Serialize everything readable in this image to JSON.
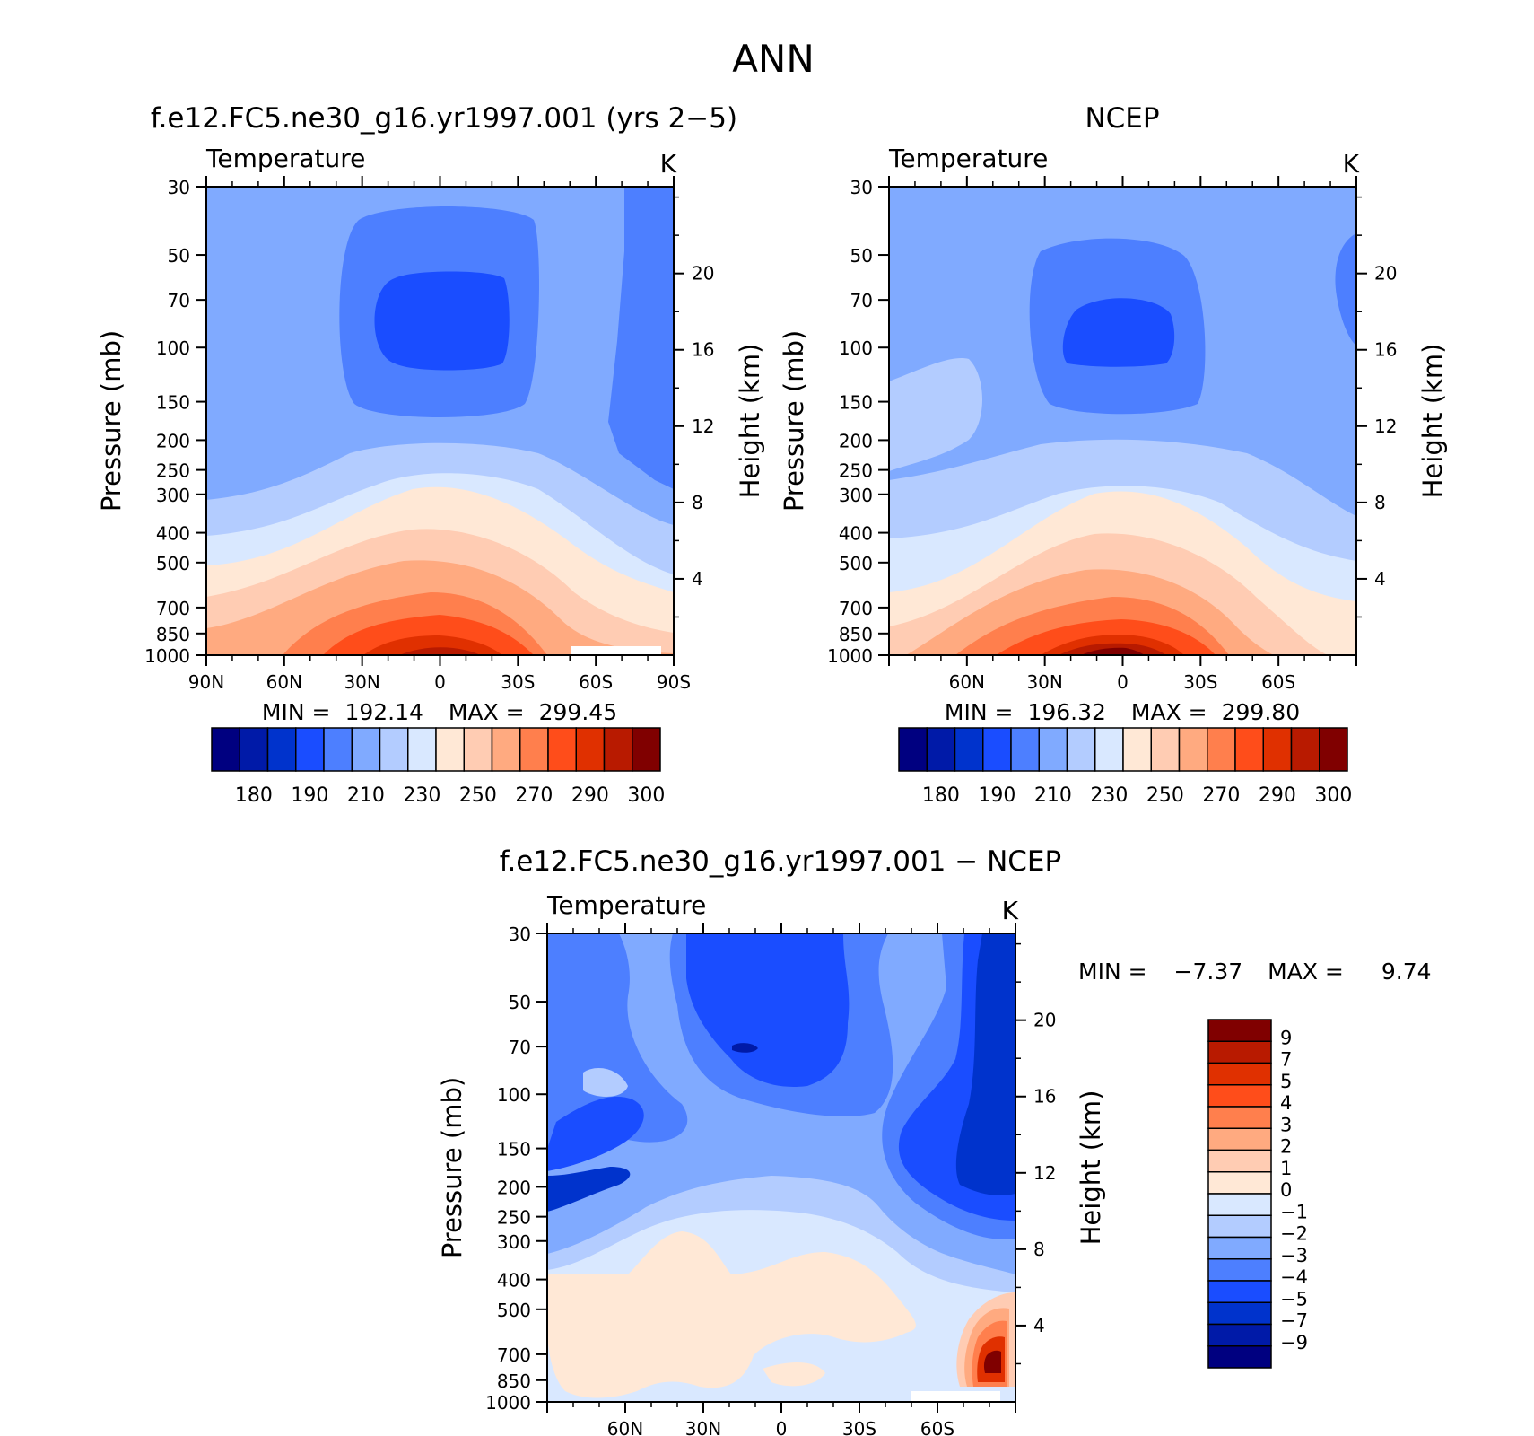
{
  "figure_title": "ANN",
  "colors": {
    "abs_scale": [
      "#000080",
      "#001aa8",
      "#0033cc",
      "#1a4dff",
      "#4d7fff",
      "#80aaff",
      "#b3ccff",
      "#d9e8ff",
      "#ffe8d6",
      "#ffccb3",
      "#ffaa80",
      "#ff7f4d",
      "#ff4d1a",
      "#e03000",
      "#b81a00",
      "#800000"
    ],
    "diff_scale": [
      "#000080",
      "#001aa8",
      "#0033cc",
      "#1a4dff",
      "#4d7fff",
      "#80aaff",
      "#b3ccff",
      "#d9e8ff",
      "#ffe8d6",
      "#ffccb3",
      "#ffaa80",
      "#ff7f4d",
      "#ff4d1a",
      "#e03000",
      "#b81a00",
      "#800000"
    ]
  },
  "chart_data": [
    {
      "type": "heatmap",
      "id": "model",
      "title": "f.e12.FC5.ne30_g16.yr1997.001 (yrs 2−5)",
      "variable": "Temperature",
      "units": "K",
      "xlabel": "",
      "ylabel": "Pressure (mb)",
      "y2label": "Height (km)",
      "x_ticks": [
        90,
        60,
        30,
        0,
        -30,
        -60,
        -90
      ],
      "x_tick_labels": [
        "90N",
        "60N",
        "30N",
        "0",
        "30S",
        "60S",
        "90S"
      ],
      "xlim": [
        90,
        -90
      ],
      "y_ticks": [
        30,
        50,
        70,
        100,
        150,
        200,
        250,
        300,
        400,
        500,
        700,
        850,
        1000
      ],
      "y_tick_labels": [
        "30",
        "50",
        "70",
        "100",
        "150",
        "200",
        "250",
        "300",
        "400",
        "500",
        "700",
        "850",
        "1000"
      ],
      "ylim": [
        1000,
        30
      ],
      "y2_ticks": [
        20,
        16,
        12,
        8,
        4
      ],
      "y2_tick_labels": [
        "20",
        "16",
        "12",
        "8",
        "4"
      ],
      "min_label": "MIN =",
      "min_value": "192.14",
      "max_label": "MAX =",
      "max_value": "299.45",
      "tropopause_min_temp": 200,
      "surface_max_temp": 299.45,
      "colorbar_labels": [
        "180",
        "190",
        "210",
        "230",
        "250",
        "270",
        "290",
        "300"
      ],
      "contour_levels": [
        175,
        180,
        185,
        190,
        200,
        210,
        220,
        230,
        240,
        250,
        260,
        270,
        280,
        290,
        295,
        300
      ]
    },
    {
      "type": "heatmap",
      "id": "ncep",
      "title": "NCEP",
      "variable": "Temperature",
      "units": "K",
      "xlabel": "",
      "ylabel": "Pressure (mb)",
      "y2label": "Height (km)",
      "x_ticks": [
        60,
        30,
        0,
        -30,
        -60
      ],
      "x_tick_labels": [
        "60N",
        "30N",
        "0",
        "30S",
        "60S"
      ],
      "xlim": [
        90,
        -90
      ],
      "y_ticks": [
        30,
        50,
        70,
        100,
        150,
        200,
        250,
        300,
        400,
        500,
        700,
        850,
        1000
      ],
      "y_tick_labels": [
        "30",
        "50",
        "70",
        "100",
        "150",
        "200",
        "250",
        "300",
        "400",
        "500",
        "700",
        "850",
        "1000"
      ],
      "ylim": [
        1000,
        30
      ],
      "y2_ticks": [
        20,
        16,
        12,
        8,
        4
      ],
      "y2_tick_labels": [
        "20",
        "16",
        "12",
        "8",
        "4"
      ],
      "min_label": "MIN =",
      "min_value": "196.32",
      "max_label": "MAX =",
      "max_value": "299.80",
      "tropopause_min_temp": 203,
      "surface_max_temp": 299.8,
      "colorbar_labels": [
        "180",
        "190",
        "210",
        "230",
        "250",
        "270",
        "290",
        "300"
      ],
      "contour_levels": [
        175,
        180,
        185,
        190,
        200,
        210,
        220,
        230,
        240,
        250,
        260,
        270,
        280,
        290,
        295,
        300
      ]
    },
    {
      "type": "heatmap",
      "id": "diff",
      "title": "f.e12.FC5.ne30_g16.yr1997.001 − NCEP",
      "variable": "Temperature",
      "units": "K",
      "xlabel": "",
      "ylabel": "Pressure (mb)",
      "y2label": "Height (km)",
      "x_ticks": [
        60,
        30,
        0,
        -30,
        -60
      ],
      "x_tick_labels": [
        "60N",
        "30N",
        "0",
        "30S",
        "60S"
      ],
      "xlim": [
        90,
        -90
      ],
      "y_ticks": [
        30,
        50,
        70,
        100,
        150,
        200,
        250,
        300,
        400,
        500,
        700,
        850,
        1000
      ],
      "y_tick_labels": [
        "30",
        "50",
        "70",
        "100",
        "150",
        "200",
        "250",
        "300",
        "400",
        "500",
        "700",
        "850",
        "1000"
      ],
      "ylim": [
        1000,
        30
      ],
      "y2_ticks": [
        20,
        16,
        12,
        8,
        4
      ],
      "y2_tick_labels": [
        "20",
        "16",
        "12",
        "8",
        "4"
      ],
      "min_label": "MIN =",
      "min_value": "−7.37",
      "max_label": "MAX =",
      "max_value": "9.74",
      "colorbar_labels": [
        "9",
        "7",
        "5",
        "4",
        "3",
        "2",
        "1",
        "0",
        "−1",
        "−2",
        "−3",
        "−4",
        "−5",
        "−7",
        "−9"
      ],
      "contour_levels": [
        -9,
        -7,
        -5,
        -4,
        -3,
        -2,
        -1,
        0,
        1,
        2,
        3,
        4,
        5,
        7,
        9
      ]
    }
  ]
}
